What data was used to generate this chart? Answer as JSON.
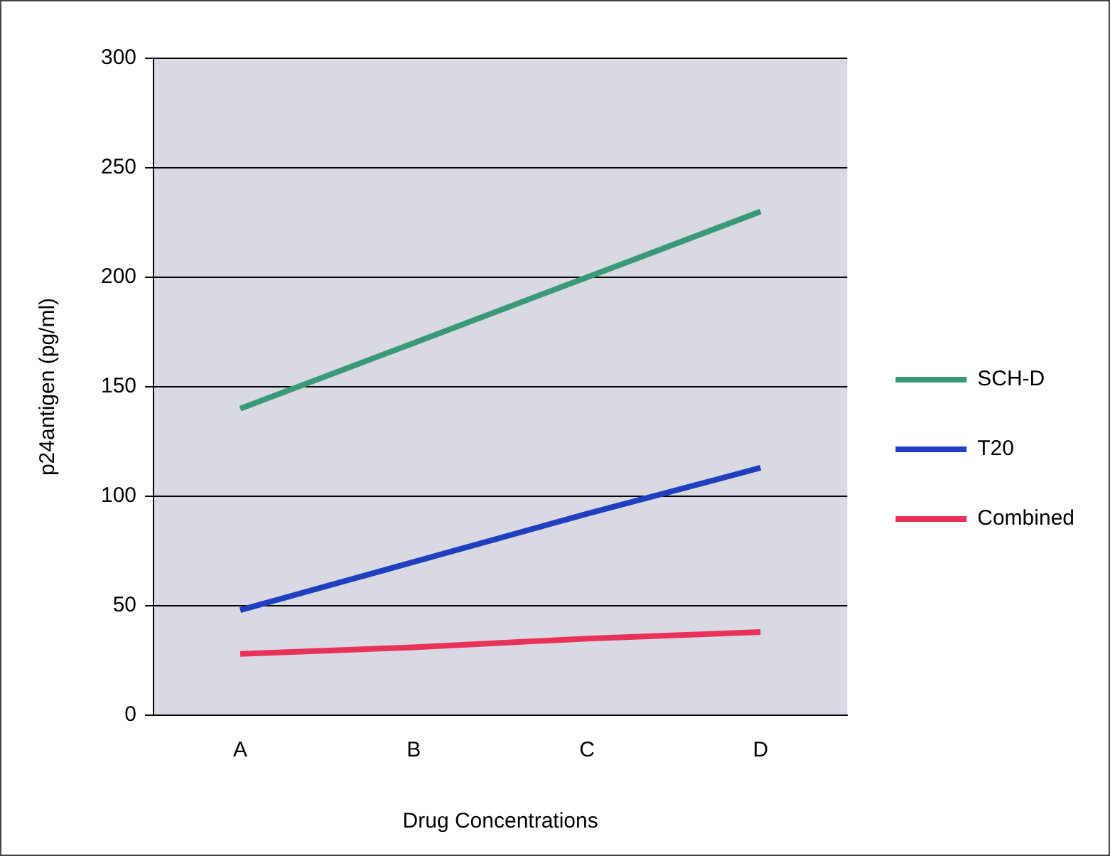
{
  "chart_data": {
    "type": "line",
    "xlabel": "Drug Concentrations",
    "ylabel": "p24antigen (pg/ml)",
    "categories": [
      "A",
      "B",
      "C",
      "D"
    ],
    "series": [
      {
        "name": "SCH-D",
        "color": "#3a9a78",
        "values": [
          140,
          170,
          200,
          230
        ]
      },
      {
        "name": "T20",
        "color": "#1f3fbf",
        "values": [
          48,
          70,
          92,
          113
        ]
      },
      {
        "name": "Combined",
        "color": "#e8325a",
        "values": [
          28,
          31,
          35,
          38
        ]
      }
    ],
    "ylim": [
      0,
      300
    ],
    "yticks": [
      0,
      50,
      100,
      150,
      200,
      250,
      300
    ],
    "grid": "y",
    "legend": "right",
    "marker": "none",
    "line_style": "solid"
  }
}
